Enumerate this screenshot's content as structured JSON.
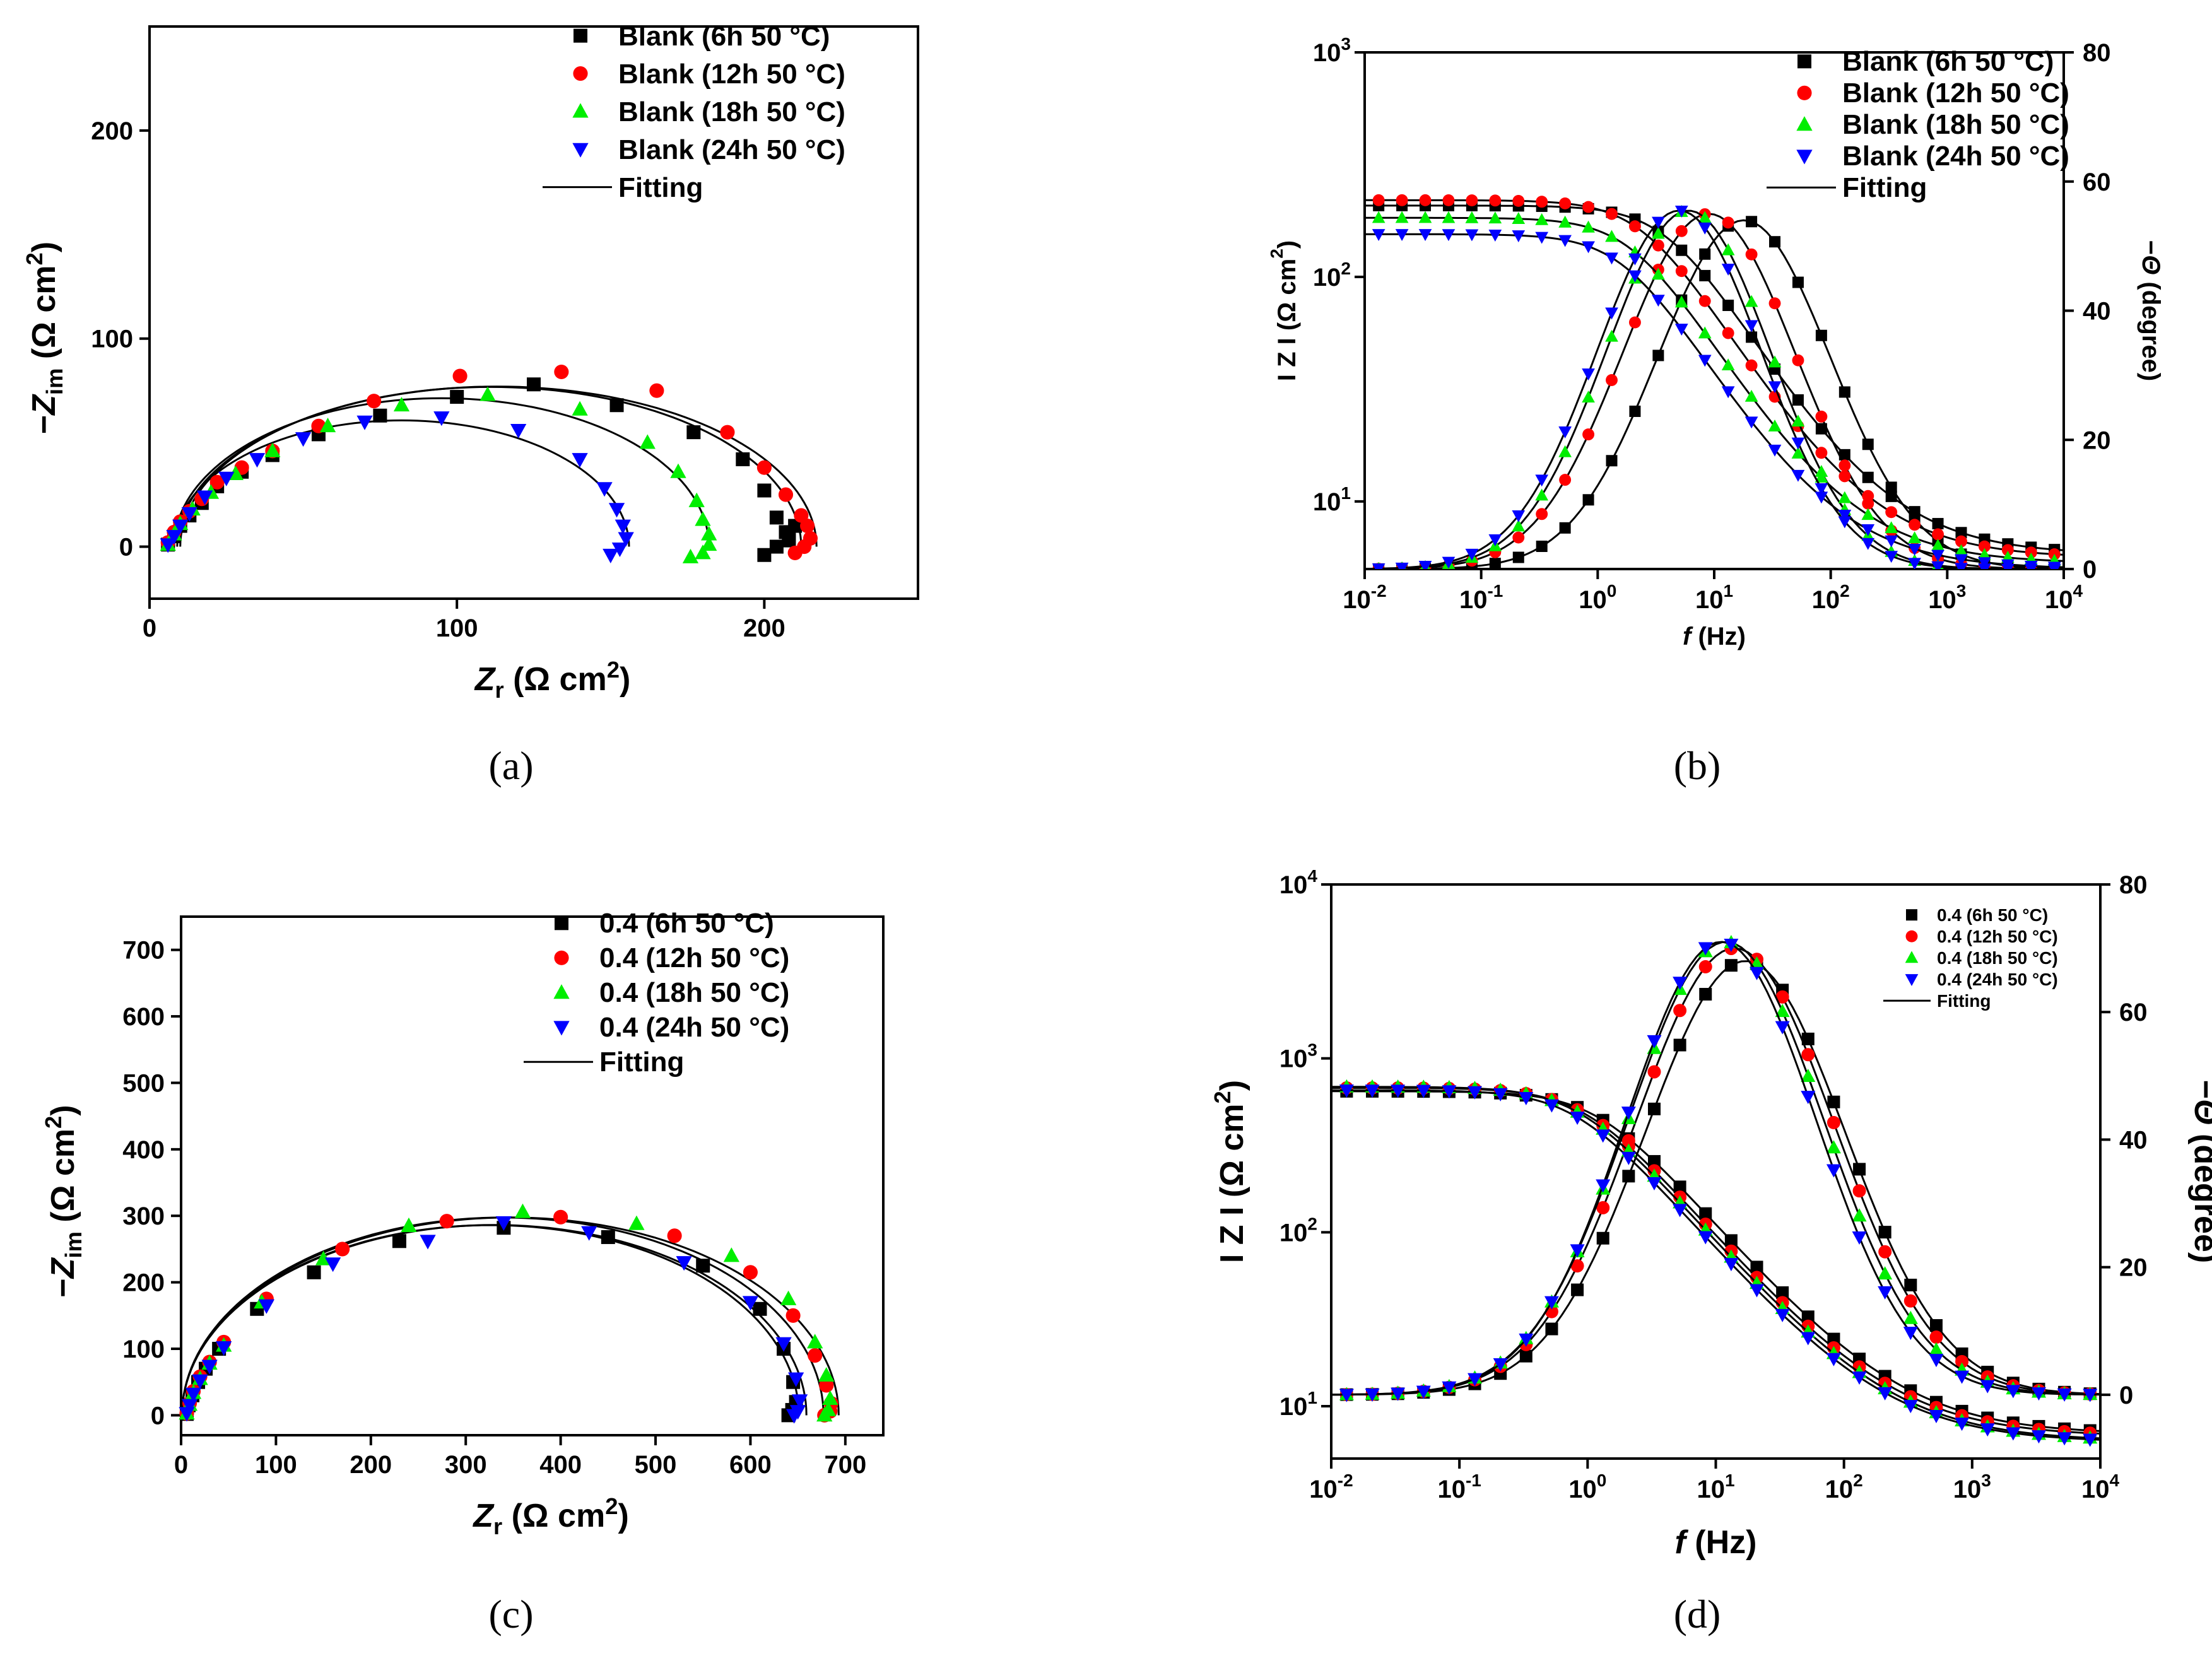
{
  "chart_data": [
    {
      "panel": "a",
      "type": "scatter",
      "caption": "(a)",
      "xlabel": "Zr (Ω cm2)",
      "ylabel": "−Zim (Ω cm2)",
      "xlim": [
        0,
        250
      ],
      "ylim": [
        -25,
        250
      ],
      "xticks": [
        0,
        100,
        200
      ],
      "yticks": [
        0,
        100,
        200
      ],
      "legend_position": "top-right",
      "fit_label": "Fitting",
      "series": [
        {
          "name": "Blank (6h 50 °C)",
          "marker": "square",
          "color": "#000000",
          "x": [
            6,
            8,
            10,
            13,
            17,
            22,
            30,
            40,
            55,
            75,
            100,
            125,
            152,
            177,
            193,
            200,
            204,
            207,
            208,
            210,
            208,
            204,
            200
          ],
          "y": [
            1,
            5,
            10,
            15,
            21,
            29,
            36,
            44,
            54,
            63,
            72,
            78,
            68,
            55,
            42,
            27,
            14,
            7,
            3,
            10,
            4,
            0,
            -4
          ]
        },
        {
          "name": "Blank (12h 50 °C)",
          "marker": "circle",
          "color": "#ff0000",
          "x": [
            6,
            8,
            10,
            13,
            17,
            22,
            30,
            40,
            55,
            73,
            101,
            134,
            165,
            188,
            200,
            207,
            212,
            214,
            215,
            213,
            210
          ],
          "y": [
            2,
            7,
            12,
            17,
            23,
            31,
            38,
            46,
            58,
            70,
            82,
            84,
            75,
            55,
            38,
            25,
            15,
            10,
            4,
            0,
            -3
          ]
        },
        {
          "name": "Blank (18h 50 °C)",
          "marker": "triangle-up",
          "color": "#00ee00",
          "x": [
            6,
            8,
            10,
            14,
            20,
            28,
            40,
            58,
            82,
            110,
            140,
            162,
            172,
            178,
            180,
            182,
            182,
            180,
            176
          ],
          "y": [
            1,
            6,
            11,
            18,
            26,
            35,
            46,
            58,
            68,
            73,
            66,
            50,
            36,
            22,
            13,
            6,
            1,
            -3,
            -5
          ]
        },
        {
          "name": "Blank (24h 50 °C)",
          "marker": "triangle-down",
          "color": "#0000ff",
          "x": [
            6,
            8,
            10,
            13,
            18,
            25,
            35,
            50,
            70,
            95,
            120,
            140,
            148,
            152,
            154,
            155,
            153,
            150
          ],
          "y": [
            1,
            5,
            10,
            16,
            24,
            33,
            42,
            52,
            60,
            62,
            56,
            42,
            28,
            18,
            10,
            4,
            -1,
            -4
          ]
        }
      ],
      "fits": [
        {
          "cx": 111,
          "r": 101,
          "k": 0.76,
          "cut": 30
        },
        {
          "cx": 113,
          "r": 104,
          "k": 0.74,
          "cut": 25
        },
        {
          "cx": 95,
          "r": 87,
          "k": 0.82,
          "cut": 22
        },
        {
          "cx": 82,
          "r": 74,
          "k": 0.82,
          "cut": 20
        }
      ]
    },
    {
      "panel": "b",
      "type": "scatter",
      "caption": "(b)",
      "xlabel": "f (Hz)",
      "ylabel": "I Z I (Ω cm2)",
      "y2label": "−Θ (degree)",
      "xscale": "log",
      "yscale": "log",
      "xlim": [
        0.01,
        10000
      ],
      "ylim": [
        5,
        1000
      ],
      "y2lim": [
        0,
        80
      ],
      "xticks": [
        "10-2",
        "10-1",
        "100",
        "101",
        "102",
        "103",
        "104"
      ],
      "yticks": [
        "101",
        "102",
        "103"
      ],
      "y2ticks": [
        0,
        20,
        40,
        60,
        80
      ],
      "legend_position": "top-right",
      "fit_label": "Fitting",
      "series": [
        {
          "name": "Blank (6h 50 °C)",
          "marker": "square",
          "color": "#000000",
          "modulus": {
            "Rs": 5.8,
            "Rp": 202,
            "fc": 4.0
          },
          "phase": {
            "peak": 54,
            "fp": 18,
            "w": 1.05
          }
        },
        {
          "name": "Blank (12h 50 °C)",
          "marker": "circle",
          "color": "#ff0000",
          "modulus": {
            "Rs": 5.6,
            "Rp": 214,
            "fc": 2.5
          },
          "phase": {
            "peak": 55,
            "fp": 9,
            "w": 1.05
          }
        },
        {
          "name": "Blank (18h 50 °C)",
          "marker": "triangle-up",
          "color": "#00ee00",
          "modulus": {
            "Rs": 5.3,
            "Rp": 178,
            "fc": 2.0
          },
          "phase": {
            "peak": 55.5,
            "fp": 6,
            "w": 1.0
          }
        },
        {
          "name": "Blank (24h 50 °C)",
          "marker": "triangle-down",
          "color": "#0000ff",
          "modulus": {
            "Rs": 5.0,
            "Rp": 150,
            "fc": 1.7
          },
          "phase": {
            "peak": 55.5,
            "fp": 5,
            "w": 1.0
          }
        }
      ]
    },
    {
      "panel": "c",
      "type": "scatter",
      "caption": "(c)",
      "xlabel": "Zr (Ω cm2)",
      "ylabel": "−Zim (Ω cm2)",
      "xlim": [
        0,
        740
      ],
      "ylim": [
        -30,
        750
      ],
      "xticks": [
        0,
        100,
        200,
        300,
        400,
        500,
        600,
        700
      ],
      "yticks": [
        0,
        100,
        200,
        300,
        400,
        500,
        600,
        700
      ],
      "legend_position": "top-right",
      "fit_label": "Fitting",
      "series": [
        {
          "name": "0.4 (6h 50 °C)",
          "marker": "square",
          "color": "#000000",
          "x": [
            6,
            8,
            12,
            18,
            26,
            40,
            80,
            140,
            230,
            340,
            450,
            550,
            610,
            635,
            645,
            648,
            644,
            640
          ],
          "y": [
            2,
            15,
            30,
            50,
            70,
            100,
            160,
            215,
            262,
            282,
            268,
            225,
            160,
            100,
            50,
            20,
            8,
            0
          ]
        },
        {
          "name": "0.4 (12h 50 °C)",
          "marker": "circle",
          "color": "#ff0000",
          "x": [
            6,
            9,
            13,
            20,
            30,
            45,
            90,
            170,
            280,
            400,
            520,
            600,
            645,
            668,
            680,
            685,
            684,
            678
          ],
          "y": [
            3,
            18,
            36,
            58,
            80,
            110,
            175,
            250,
            292,
            298,
            270,
            215,
            150,
            90,
            45,
            18,
            6,
            0
          ]
        },
        {
          "name": "0.4 (18h 50 °C)",
          "marker": "triangle-up",
          "color": "#00ee00",
          "x": [
            6,
            9,
            13,
            20,
            30,
            45,
            85,
            150,
            240,
            360,
            480,
            580,
            640,
            668,
            680,
            684,
            682,
            678
          ],
          "y": [
            3,
            16,
            34,
            55,
            78,
            105,
            170,
            235,
            285,
            306,
            288,
            240,
            175,
            110,
            60,
            25,
            8,
            0
          ]
        },
        {
          "name": "0.4 (24h 50 °C)",
          "marker": "triangle-down",
          "color": "#0000ff",
          "x": [
            6,
            9,
            13,
            20,
            30,
            45,
            90,
            160,
            260,
            340,
            430,
            530,
            600,
            635,
            648,
            652,
            650,
            646
          ],
          "y": [
            3,
            15,
            32,
            52,
            74,
            102,
            165,
            228,
            262,
            290,
            275,
            230,
            170,
            108,
            55,
            22,
            6,
            0
          ]
        }
      ],
      "fits": [
        {
          "cx": 326,
          "r": 325,
          "k": 0.88,
          "cut": 40
        },
        {
          "cx": 347,
          "r": 346,
          "k": 0.86,
          "cut": 40
        },
        {
          "cx": 339,
          "r": 338,
          "k": 0.88,
          "cut": 40
        },
        {
          "cx": 330,
          "r": 329,
          "k": 0.87,
          "cut": 40
        }
      ]
    },
    {
      "panel": "d",
      "type": "scatter",
      "caption": "(d)",
      "xlabel": "f (Hz)",
      "ylabel": "I Z I (Ω cm2)",
      "y2label": "−Θ (degree)",
      "xscale": "log",
      "yscale": "log",
      "xlim": [
        0.01,
        10000
      ],
      "ylim": [
        5,
        10000
      ],
      "y2lim": [
        -10,
        80
      ],
      "xticks": [
        "10-2",
        "10-1",
        "100",
        "101",
        "102",
        "103",
        "104"
      ],
      "yticks": [
        "101",
        "102",
        "103",
        "104"
      ],
      "y2ticks": [
        0,
        20,
        40,
        60,
        80
      ],
      "legend_position": "top-right",
      "fit_label": "Fitting",
      "series": [
        {
          "name": "0.4 (6h 50 °C)",
          "marker": "square",
          "color": "#000000",
          "modulus": {
            "Rs": 6.9,
            "Rp": 640,
            "fc": 1.2
          },
          "phase": {
            "peak": 68,
            "fp": 17,
            "w": 1.1
          }
        },
        {
          "name": "0.4 (12h 50 °C)",
          "marker": "circle",
          "color": "#ff0000",
          "modulus": {
            "Rs": 6.7,
            "Rp": 670,
            "fc": 0.95
          },
          "phase": {
            "peak": 70,
            "fp": 14,
            "w": 1.1
          }
        },
        {
          "name": "0.4 (18h 50 °C)",
          "marker": "triangle-up",
          "color": "#00ee00",
          "modulus": {
            "Rs": 6.3,
            "Rp": 680,
            "fc": 0.85
          },
          "phase": {
            "peak": 71,
            "fp": 12,
            "w": 1.08
          }
        },
        {
          "name": "0.4 (24h 50 °C)",
          "marker": "triangle-down",
          "color": "#0000ff",
          "modulus": {
            "Rs": 6.2,
            "Rp": 650,
            "fc": 0.8
          },
          "phase": {
            "peak": 71,
            "fp": 11,
            "w": 1.05
          }
        }
      ]
    }
  ]
}
